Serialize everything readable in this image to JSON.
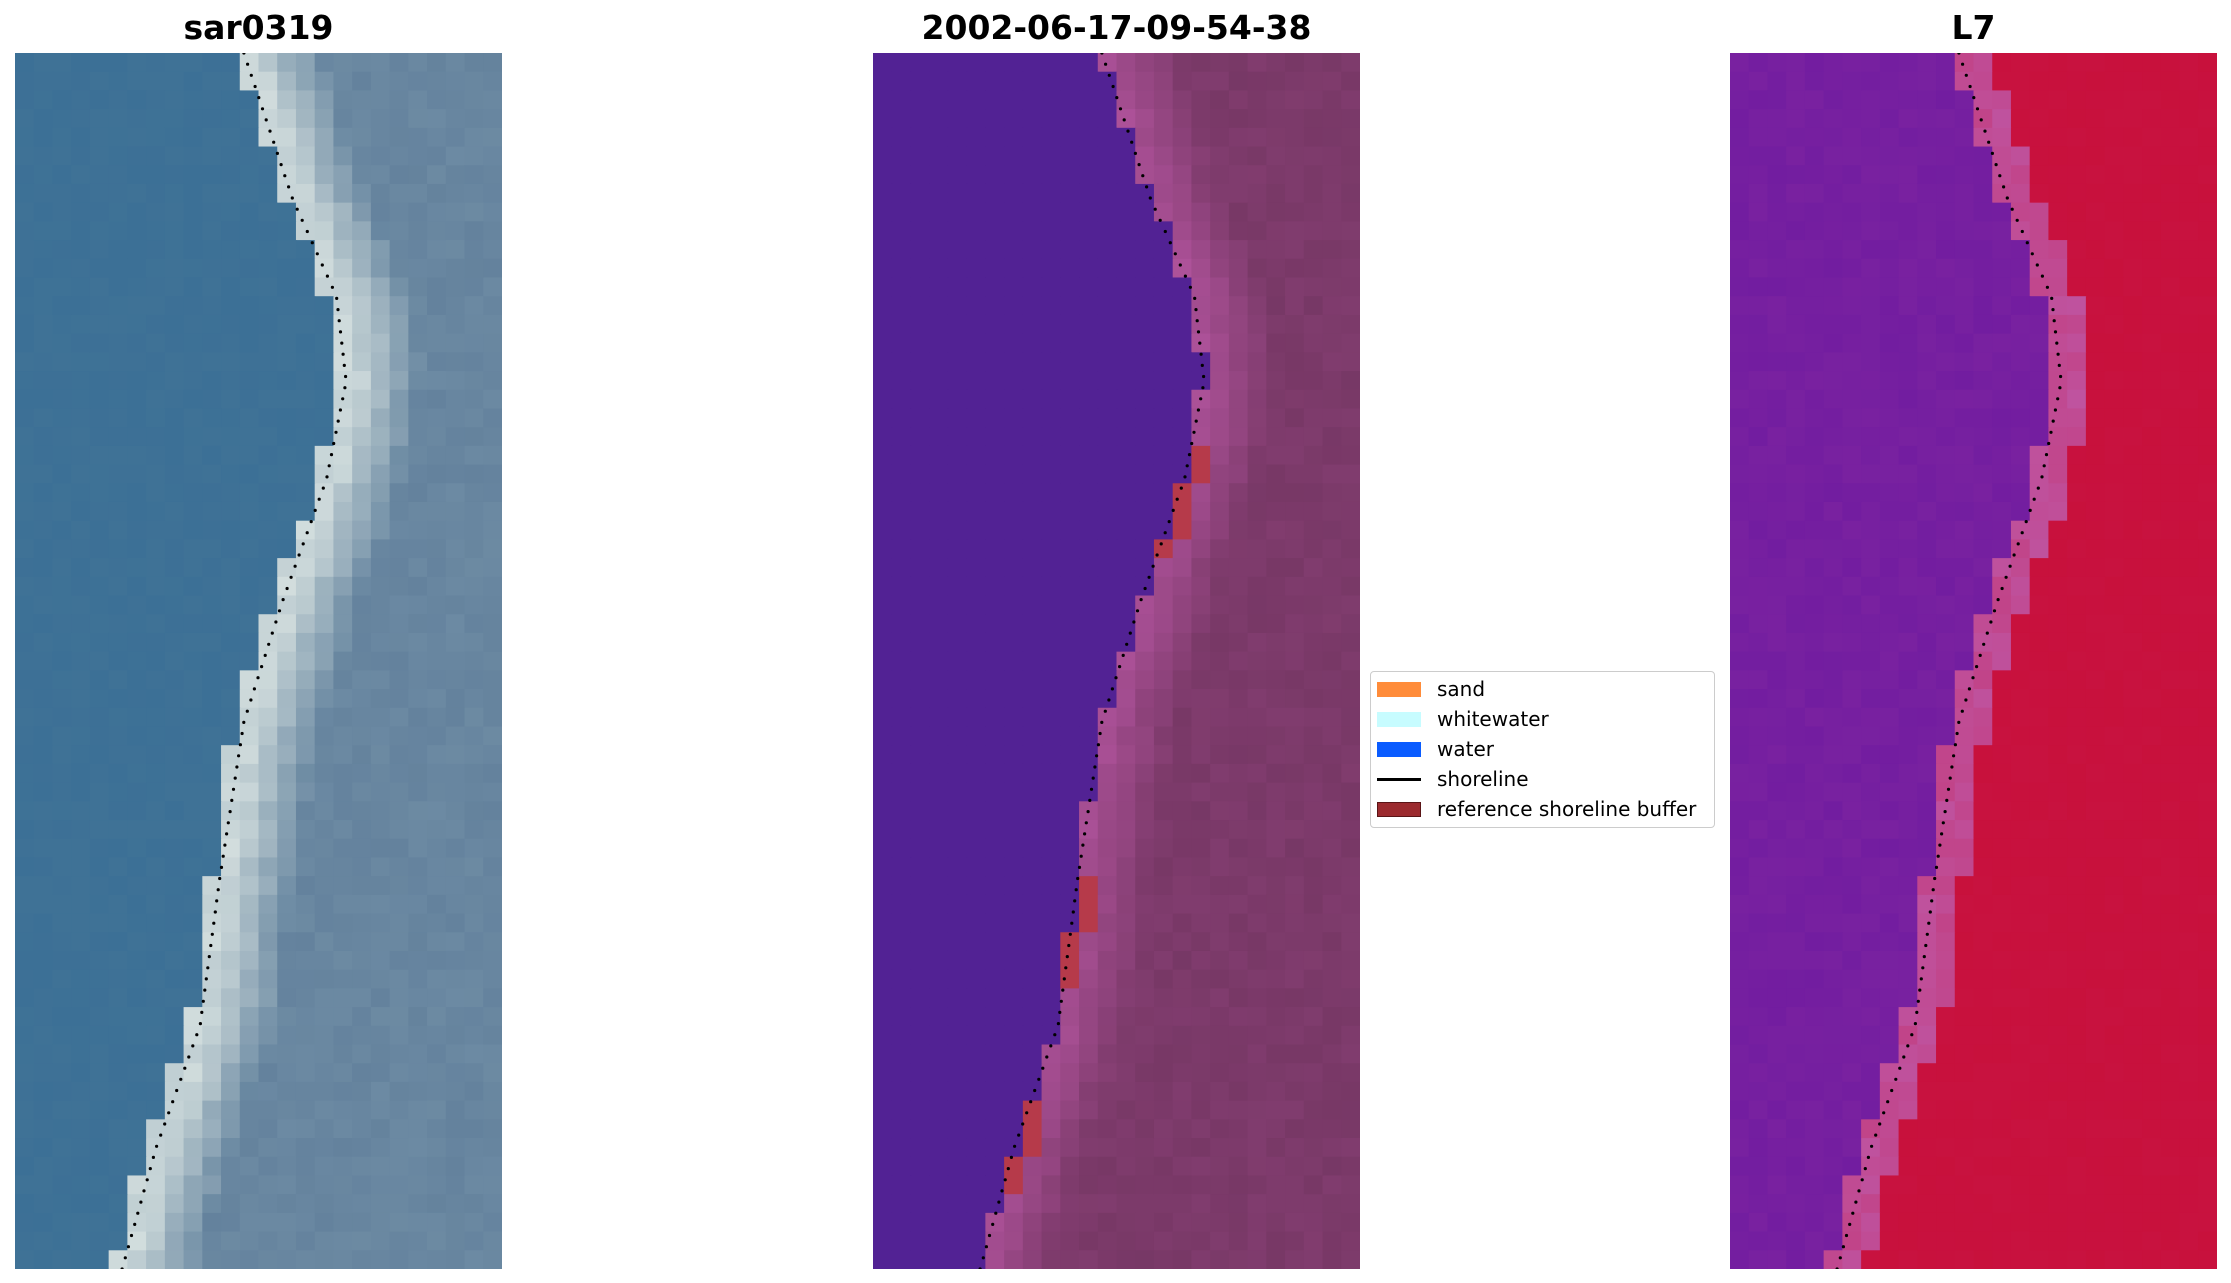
{
  "panels": [
    {
      "title": "sar0319",
      "kind": "rgb"
    },
    {
      "title": "2002-06-17-09-54-38",
      "kind": "classified"
    },
    {
      "title": "L7",
      "kind": "index"
    }
  ],
  "legend": {
    "items": [
      {
        "label": "sand",
        "type": "patch",
        "color": "#ff8c3a"
      },
      {
        "label": "whitewater",
        "type": "patch",
        "color": "#c7fcff"
      },
      {
        "label": "water",
        "type": "patch",
        "color": "#0a5cff"
      },
      {
        "label": "shoreline",
        "type": "line",
        "color": "#000000"
      },
      {
        "label": "reference shoreline buffer",
        "type": "patch",
        "color": "#9b2a2e",
        "edge": "#5a1416"
      }
    ]
  },
  "colors": {
    "rgb_water": "#3a6e96",
    "rgb_surf": "#c9d6d8",
    "rgb_land": "#6e8ca4",
    "classified_water": "#522294",
    "classified_land": "#7c3a6a",
    "classified_buffer": "#b63a4a",
    "index_water": "#7a22a0",
    "index_land": "#c8103a",
    "shoreline_dots": "#000000"
  }
}
